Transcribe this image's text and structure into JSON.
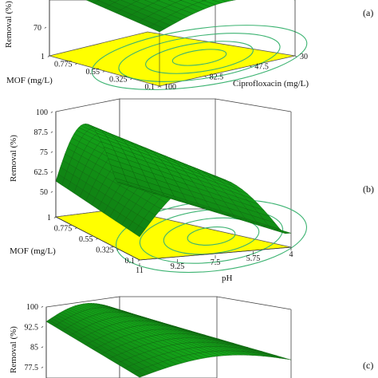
{
  "chart_data": [
    {
      "type": "surface3d",
      "panel_label": "(a)",
      "zlabel": "Removal (%)",
      "z_ticks": [
        "70"
      ],
      "x_axis": {
        "label": "MOF (mg/L)",
        "ticks": [
          "1",
          "0.775",
          "0.55",
          "0.325",
          "0.1"
        ]
      },
      "y_axis": {
        "label": "Ciprofloxacin (mg/L)",
        "ticks": [
          "30",
          "47.5",
          "82.5",
          "100"
        ]
      },
      "surface_color": "#1a9e1a",
      "contour_floor_color": "#ffff00",
      "contour_line_color": "#3cb371"
    },
    {
      "type": "surface3d",
      "panel_label": "(b)",
      "zlabel": "Removal (%)",
      "z_ticks": [
        "100",
        "87.5",
        "75",
        "62.5",
        "50"
      ],
      "zlim": [
        50,
        100
      ],
      "x_axis": {
        "label": "MOF (mg/L)",
        "ticks": [
          "1",
          "0.775",
          "0.55",
          "0.325",
          "0.1"
        ]
      },
      "y_axis": {
        "label": "pH",
        "ticks": [
          "11",
          "9.25",
          "7.5",
          "5.75",
          "4"
        ]
      },
      "surface_color": "#1a9e1a",
      "contour_floor_color": "#ffff00",
      "contour_line_color": "#3cb371"
    },
    {
      "type": "surface3d",
      "panel_label": "(c)",
      "zlabel": "Removal (%)",
      "z_ticks": [
        "100",
        "92.5",
        "85",
        "77.5"
      ],
      "surface_color": "#1a9e1a"
    }
  ]
}
